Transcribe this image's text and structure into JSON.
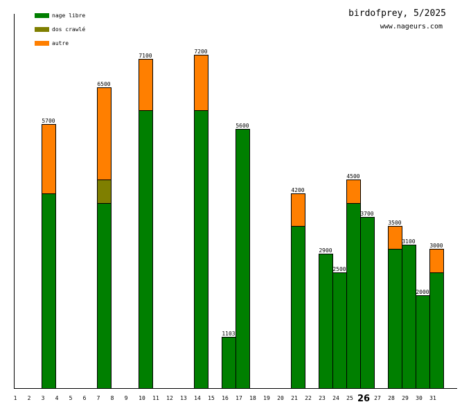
{
  "chart_data": {
    "type": "bar",
    "stacked": true,
    "title": "birdofprey, 5/2025",
    "subtitle": "www.nageurs.com",
    "xlabel": "",
    "ylabel": "",
    "ylim": [
      0,
      8000
    ],
    "grid": false,
    "legend_position": "top-left",
    "highlight_category": "26",
    "categories": [
      "1",
      "2",
      "3",
      "4",
      "5",
      "6",
      "7",
      "8",
      "9",
      "10",
      "11",
      "12",
      "13",
      "14",
      "15",
      "16",
      "17",
      "18",
      "19",
      "20",
      "21",
      "22",
      "23",
      "24",
      "25",
      "26",
      "27",
      "28",
      "29",
      "30",
      "31"
    ],
    "series": [
      {
        "name": "nage libre",
        "color": "#007F00",
        "values": [
          0,
          0,
          4200,
          0,
          0,
          0,
          4000,
          0,
          0,
          6000,
          0,
          0,
          0,
          6000,
          0,
          1103,
          5600,
          0,
          0,
          0,
          3500,
          0,
          2900,
          2500,
          4000,
          3700,
          0,
          3000,
          3100,
          2000,
          2500
        ]
      },
      {
        "name": "dos crawlé",
        "color": "#7F7F00",
        "values": [
          0,
          0,
          0,
          0,
          0,
          0,
          500,
          0,
          0,
          0,
          0,
          0,
          0,
          0,
          0,
          0,
          0,
          0,
          0,
          0,
          0,
          0,
          0,
          0,
          0,
          0,
          0,
          0,
          0,
          0,
          0
        ]
      },
      {
        "name": "autre",
        "color": "#FF7F00",
        "values": [
          0,
          0,
          1500,
          0,
          0,
          0,
          2000,
          0,
          0,
          1100,
          0,
          0,
          0,
          1200,
          0,
          0,
          0,
          0,
          0,
          0,
          700,
          0,
          0,
          0,
          500,
          0,
          0,
          500,
          0,
          0,
          500
        ]
      }
    ],
    "totals": [
      0,
      0,
      5700,
      0,
      0,
      0,
      6500,
      0,
      0,
      7100,
      0,
      0,
      0,
      7200,
      0,
      1103,
      5600,
      0,
      0,
      0,
      4200,
      0,
      2900,
      2500,
      4500,
      3700,
      0,
      3500,
      3100,
      2000,
      3000
    ]
  }
}
